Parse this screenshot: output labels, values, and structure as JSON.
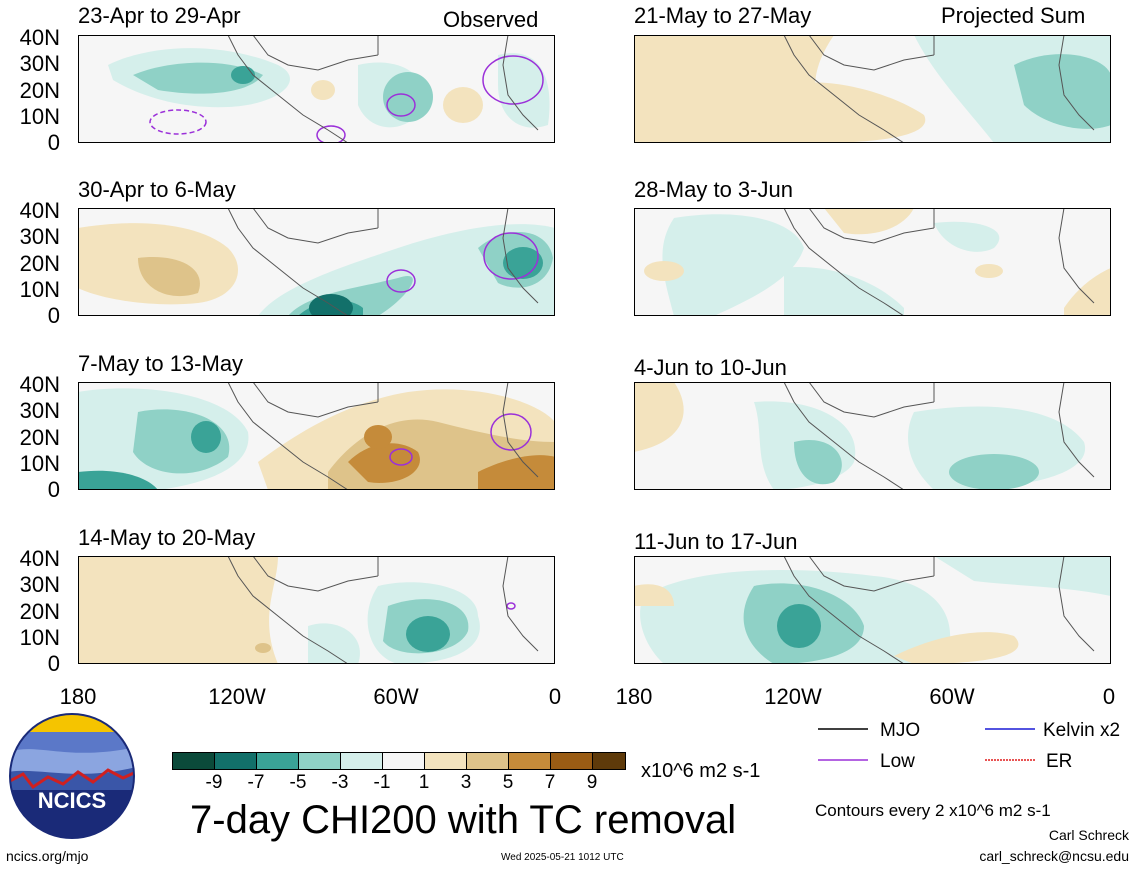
{
  "panels_left": {
    "p1": {
      "title": "23-Apr to 29-Apr",
      "tag": "Observed"
    },
    "p2": {
      "title": "30-Apr to 6-May"
    },
    "p3": {
      "title": "7-May to 13-May"
    },
    "p4": {
      "title": "14-May to 20-May"
    }
  },
  "panels_right": {
    "p1": {
      "title": "21-May to 27-May",
      "tag": "Projected Sum"
    },
    "p2": {
      "title": "28-May to 3-Jun"
    },
    "p3": {
      "title": "4-Jun to 10-Jun"
    },
    "p4": {
      "title": "11-Jun to 17-Jun"
    }
  },
  "y_ticks": [
    "40N",
    "30N",
    "20N",
    "10N",
    "0"
  ],
  "x_ticks": [
    "180",
    "120W",
    "60W",
    "0"
  ],
  "legend": {
    "mjo": "MJO",
    "low": "Low",
    "kelvin": "Kelvin x2",
    "er": "ER",
    "colors": {
      "mjo": "#000000",
      "low": "#9b30d9",
      "kelvin": "#1a1ad6",
      "er": "#e01a1a"
    }
  },
  "colorbar": {
    "labels": [
      "-9",
      "-7",
      "-5",
      "-3",
      "-1",
      "1",
      "3",
      "5",
      "7",
      "9"
    ],
    "colors": [
      "#0b4a3a",
      "#12706a",
      "#3aa397",
      "#8fd1c6",
      "#d5efeb",
      "#f6f6f6",
      "#f3e3be",
      "#dec38a",
      "#c58b3a",
      "#9a5c14",
      "#5e3a0a"
    ],
    "units": "x10^6 m2 s-1"
  },
  "title": "7-day CHI200 with TC removal",
  "contours_note": "Contours every 2 x10^6 m2 s-1",
  "author": "Carl Schreck",
  "email": "carl_schreck@ncsu.edu",
  "url": "ncics.org/mjo",
  "timestamp": "Wed 2025-05-21 1012 UTC",
  "logo_text": "NCICS"
}
